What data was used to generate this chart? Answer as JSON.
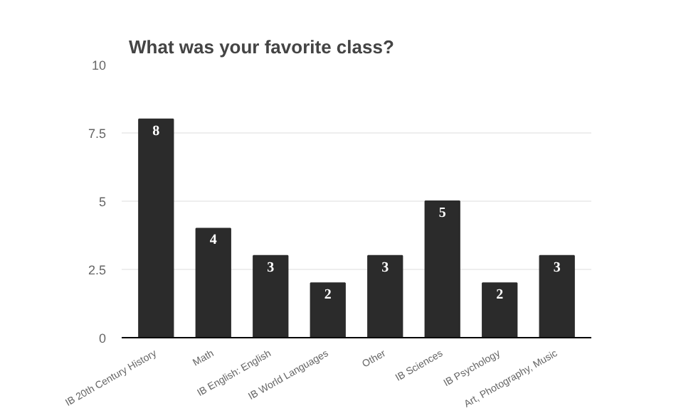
{
  "chart_data": {
    "type": "bar",
    "title": "What was your favorite class?",
    "categories": [
      "IB 20th Century History",
      "Math",
      "IB English: English",
      "IB World Languages",
      "Other",
      "IB Sciences",
      "IB Psychology",
      "Art, Photography, Music"
    ],
    "values": [
      8,
      4,
      3,
      2,
      3,
      5,
      2,
      3
    ],
    "color": "#2b2b2b",
    "ylim": [
      0,
      10
    ],
    "yticks": [
      0,
      2.5,
      5,
      7.5,
      10
    ],
    "grid": "y",
    "data_labels": true
  }
}
